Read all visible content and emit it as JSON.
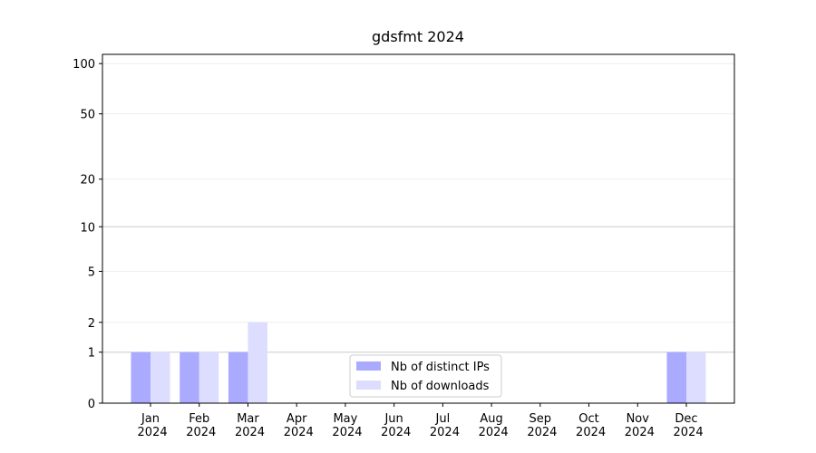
{
  "chart_data": {
    "type": "bar",
    "title": "gdsfmt 2024",
    "categories": [
      "Jan 2024",
      "Feb 2024",
      "Mar 2024",
      "Apr 2024",
      "May 2024",
      "Jun 2024",
      "Jul 2024",
      "Aug 2024",
      "Sep 2024",
      "Oct 2024",
      "Nov 2024",
      "Dec 2024"
    ],
    "series": [
      {
        "name": "Nb of distinct IPs",
        "color": "#aaaaff",
        "values": [
          1,
          1,
          1,
          0,
          0,
          0,
          0,
          0,
          0,
          0,
          0,
          1
        ]
      },
      {
        "name": "Nb of downloads",
        "color": "#ddddff",
        "values": [
          1,
          1,
          2,
          0,
          0,
          0,
          0,
          0,
          0,
          0,
          0,
          1
        ]
      }
    ],
    "yscale": "log1p",
    "ylim": [
      0,
      113.5
    ],
    "yticks": [
      0,
      1,
      2,
      5,
      10,
      20,
      50,
      100
    ],
    "grid": true,
    "legend": "lower center"
  }
}
